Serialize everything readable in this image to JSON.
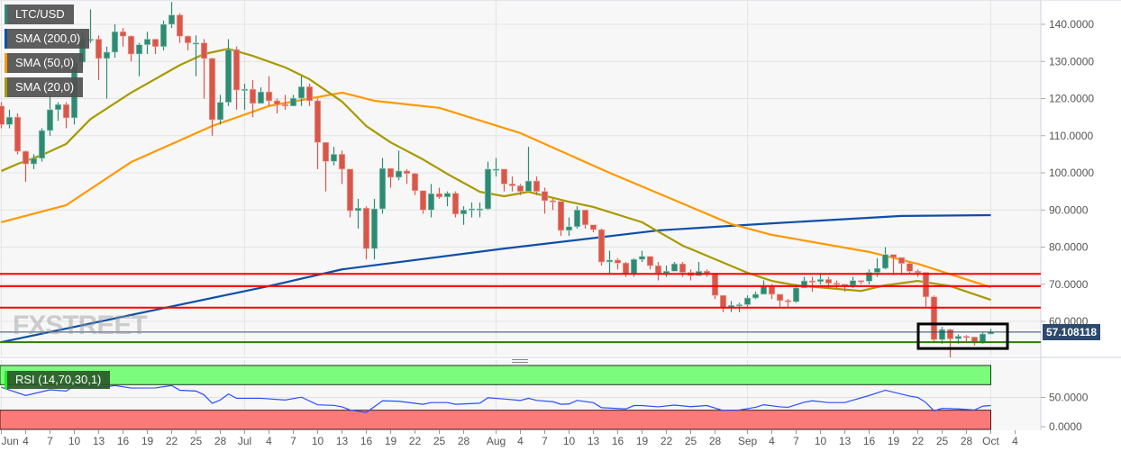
{
  "legend": {
    "symbol": {
      "label": "LTC/USD",
      "color": "#2e8b73"
    },
    "sma200": {
      "label": "SMA (200,0)",
      "color": "#0d4fa8"
    },
    "sma50": {
      "label": "SMA (50,0)",
      "color": "#ff9800"
    },
    "sma20": {
      "label": "SMA (20,0)",
      "color": "#a89a00"
    },
    "rsi": {
      "label": "RSI (14,70,30,1)",
      "color": "#22ee22"
    }
  },
  "watermark": "FXSTREET",
  "current_price": "57.108118",
  "colors": {
    "up": "#2e8b73",
    "down": "#d9574a",
    "resistance": "#ff0000",
    "support": "#2e7d00",
    "price_line": "#2c4a6e",
    "rsi_line": "#2a4dff",
    "overbought": "#7cfc7c",
    "oversold": "#fa7a7a"
  },
  "chart_data": [
    {
      "type": "candlestick",
      "title": "LTC/USD",
      "ylim": [
        50,
        146
      ],
      "y_ticks": [
        "140.0000",
        "130.0000",
        "120.0000",
        "110.0000",
        "100.0000",
        "90.0000",
        "80.0000",
        "70.0000",
        "60.0000"
      ],
      "x_ticks": [
        {
          "label": "Jun",
          "date": "Jun 1"
        },
        {
          "label": "4",
          "date": "Jun 4"
        },
        {
          "label": "7",
          "date": "Jun 7"
        },
        {
          "label": "10",
          "date": "Jun 10"
        },
        {
          "label": "13",
          "date": "Jun 13"
        },
        {
          "label": "16",
          "date": "Jun 16"
        },
        {
          "label": "19",
          "date": "Jun 19"
        },
        {
          "label": "22",
          "date": "Jun 22"
        },
        {
          "label": "25",
          "date": "Jun 25"
        },
        {
          "label": "28",
          "date": "Jun 28"
        },
        {
          "label": "Jul",
          "date": "Jul 1"
        },
        {
          "label": "4",
          "date": "Jul 4"
        },
        {
          "label": "7",
          "date": "Jul 7"
        },
        {
          "label": "10",
          "date": "Jul 10"
        },
        {
          "label": "13",
          "date": "Jul 13"
        },
        {
          "label": "16",
          "date": "Jul 16"
        },
        {
          "label": "19",
          "date": "Jul 19"
        },
        {
          "label": "22",
          "date": "Jul 22"
        },
        {
          "label": "25",
          "date": "Jul 25"
        },
        {
          "label": "28",
          "date": "Jul 28"
        },
        {
          "label": "Aug",
          "date": "Aug 1"
        },
        {
          "label": "4",
          "date": "Aug 4"
        },
        {
          "label": "7",
          "date": "Aug 7"
        },
        {
          "label": "10",
          "date": "Aug 10"
        },
        {
          "label": "13",
          "date": "Aug 13"
        },
        {
          "label": "16",
          "date": "Aug 16"
        },
        {
          "label": "19",
          "date": "Aug 19"
        },
        {
          "label": "22",
          "date": "Aug 22"
        },
        {
          "label": "25",
          "date": "Aug 25"
        },
        {
          "label": "28",
          "date": "Aug 28"
        },
        {
          "label": "Sep",
          "date": "Sep 1"
        },
        {
          "label": "4",
          "date": "Sep 4"
        },
        {
          "label": "7",
          "date": "Sep 7"
        },
        {
          "label": "10",
          "date": "Sep 10"
        },
        {
          "label": "13",
          "date": "Sep 13"
        },
        {
          "label": "16",
          "date": "Sep 16"
        },
        {
          "label": "19",
          "date": "Sep 19"
        },
        {
          "label": "22",
          "date": "Sep 22"
        },
        {
          "label": "25",
          "date": "Sep 25"
        },
        {
          "label": "28",
          "date": "Sep 28"
        },
        {
          "label": "Oct",
          "date": "Oct 1"
        },
        {
          "label": "4",
          "date": "Oct 4"
        }
      ],
      "first_open": 118,
      "close": [
        113,
        115,
        105.8,
        102.4,
        103.9,
        111.4,
        117,
        118.4,
        114.8,
        129.8,
        136,
        136,
        130.8,
        132.5,
        138,
        136.8,
        132,
        134.5,
        136,
        134,
        140,
        142.5,
        136.8,
        135,
        135,
        130.8,
        114.3,
        119,
        133.2,
        122.3,
        122.5,
        118.7,
        121.8,
        119.4,
        118.4,
        118,
        120.1,
        123.2,
        119.4,
        108.2,
        103.1,
        105,
        101,
        89.8,
        90.5,
        79.6,
        90.3,
        101.2,
        98.8,
        100.5,
        99.8,
        95.2,
        90,
        94.4,
        93.5,
        94.5,
        88.9,
        90,
        90.3,
        90.3,
        101,
        101,
        97,
        96.5,
        95,
        97.8,
        95,
        92.5,
        92.3,
        84.5,
        85.5,
        90,
        86,
        84.7,
        76,
        76.5,
        75.7,
        72.8,
        76.7,
        77.5,
        75,
        73,
        73.5,
        75.5,
        73.2,
        72.3,
        73.5,
        73,
        67,
        63.8,
        64.3,
        64.5,
        66.3,
        67.3,
        69.5,
        67.3,
        65.6,
        65.3,
        69,
        70.9,
        70.7,
        71.3,
        70.3,
        70,
        69.7,
        71,
        70.8,
        73.2,
        74.3,
        78,
        77.2,
        75.6,
        73.5,
        73.2,
        66.6,
        55.1,
        57.8,
        55.3,
        56,
        55.8,
        54.5,
        56.6,
        57.1
      ],
      "high": [
        119,
        117,
        116,
        106,
        105,
        112,
        121,
        119,
        119,
        131,
        138,
        144,
        137,
        134,
        140,
        139,
        137,
        135,
        138,
        136,
        141,
        146,
        143,
        137,
        137,
        136,
        131,
        121,
        136,
        134,
        124,
        125,
        123,
        126,
        120,
        121,
        121,
        126,
        124,
        120,
        108,
        107,
        106,
        101,
        93,
        91,
        93,
        104,
        101,
        106,
        101,
        100,
        95,
        97,
        96,
        95,
        95,
        91,
        92,
        92,
        103,
        104,
        101,
        99,
        97,
        107,
        99,
        96,
        93,
        92,
        88,
        91,
        90,
        86,
        85,
        79,
        77,
        76,
        77,
        79,
        77,
        76,
        75,
        76,
        76,
        74,
        76,
        74,
        73,
        67,
        65.5,
        65,
        67,
        68,
        71,
        70,
        67,
        66,
        70,
        72,
        72,
        73,
        72,
        71,
        70,
        72,
        71,
        74,
        77,
        80,
        78,
        77,
        76,
        74,
        73,
        67,
        58.5,
        58,
        56.5,
        56.3,
        55.5,
        57,
        58
      ],
      "low": [
        112,
        112,
        105,
        97.6,
        101,
        103,
        110,
        114,
        112,
        113,
        128,
        135,
        125,
        120,
        131,
        134,
        130,
        126,
        132,
        132,
        133,
        139,
        135,
        133,
        126,
        120,
        110,
        113,
        118,
        117,
        117,
        115,
        119,
        118,
        116,
        117,
        118,
        118,
        118,
        101,
        95,
        102,
        97,
        88,
        85,
        76.7,
        76.7,
        89,
        96,
        98,
        97,
        94,
        89,
        88,
        93,
        91,
        88,
        86,
        88,
        88,
        90,
        99,
        95,
        95,
        94,
        95,
        94,
        89,
        90,
        83,
        83,
        85,
        85,
        84,
        75,
        73,
        74,
        72,
        72,
        76,
        74,
        71,
        72,
        74,
        72,
        71,
        73,
        72,
        66,
        62.5,
        62.5,
        62.5,
        64,
        66,
        68,
        66,
        64,
        64,
        65,
        69,
        68,
        70,
        69,
        69,
        68,
        69,
        70,
        70,
        72,
        74,
        72.5,
        72.5,
        73,
        72,
        64,
        54.5,
        54,
        50.3,
        54,
        54.5,
        53.5,
        54,
        56.6
      ],
      "sma200": [
        [
          "Jun 1",
          54.4
        ],
        [
          "Jul 4",
          69.5
        ],
        [
          "Jul 13",
          74
        ],
        [
          "Aug 2",
          79.6
        ],
        [
          "Aug 21",
          84.5
        ],
        [
          "Sep 4",
          86.4
        ],
        [
          "Sep 20",
          88.4
        ],
        [
          "Oct 1",
          88.6
        ]
      ],
      "sma50": [
        [
          "Jun 1",
          86.7
        ],
        [
          "Jun 9",
          91.3
        ],
        [
          "Jun 17",
          102.9
        ],
        [
          "Jun 27",
          112.6
        ],
        [
          "Jul 4",
          118
        ],
        [
          "Jul 13",
          121.6
        ],
        [
          "Jul 17",
          119.4
        ],
        [
          "Jul 25",
          117.5
        ],
        [
          "Aug 4",
          110.7
        ],
        [
          "Aug 15",
          100
        ],
        [
          "Aug 30",
          86.2
        ],
        [
          "Sep 4",
          83.3
        ],
        [
          "Sep 16",
          78.7
        ],
        [
          "Sep 22",
          75.5
        ],
        [
          "Oct 1",
          69.2
        ]
      ],
      "sma20": [
        [
          "Jun 1",
          100.5
        ],
        [
          "Jun 3",
          102.4
        ],
        [
          "Jun 6",
          104.8
        ],
        [
          "Jun 9",
          107.8
        ],
        [
          "Jun 12",
          114.5
        ],
        [
          "Jun 17",
          121.6
        ],
        [
          "Jun 23",
          129
        ],
        [
          "Jun 26",
          132
        ],
        [
          "Jun 29",
          133.4
        ],
        [
          "Jul 2",
          131.5
        ],
        [
          "Jul 6",
          128.4
        ],
        [
          "Jul 9",
          125.2
        ],
        [
          "Jul 13",
          119.2
        ],
        [
          "Jul 16",
          112.6
        ],
        [
          "Jul 19",
          108.2
        ],
        [
          "Jul 23",
          103.6
        ],
        [
          "Jul 26",
          99.7
        ],
        [
          "Jul 30",
          94.9
        ],
        [
          "Aug 2",
          93.7
        ],
        [
          "Aug 5",
          94.9
        ],
        [
          "Aug 10",
          92.2
        ],
        [
          "Aug 13",
          90.8
        ],
        [
          "Aug 19",
          86.7
        ],
        [
          "Aug 24",
          80.4
        ],
        [
          "Sep 1",
          73.1
        ],
        [
          "Sep 4",
          70.9
        ],
        [
          "Sep 7",
          69.7
        ],
        [
          "Sep 15",
          68.2
        ],
        [
          "Sep 18",
          69.7
        ],
        [
          "Sep 22",
          70.9
        ],
        [
          "Sep 26",
          69.5
        ],
        [
          "Oct 1",
          65.8
        ]
      ],
      "resistance_levels": [
        72.8,
        69.5,
        63.7
      ],
      "support_level": 54.4,
      "current_price_value": 57.108118,
      "highlight_box": {
        "from": "Sep 22",
        "to": "Oct 3",
        "low": 52.7,
        "high": 59.3
      },
      "grid": true
    },
    {
      "type": "line",
      "title": "RSI (14,70,30,1)",
      "ylim": [
        0,
        100
      ],
      "y_ticks": [
        "50.0000",
        "0.0000"
      ],
      "overbought": 70,
      "oversold": 30,
      "series": [
        [
          "Jun 1",
          66
        ],
        [
          "Jun 4",
          53
        ],
        [
          "Jun 7",
          62
        ],
        [
          "Jun 9",
          60
        ],
        [
          "Jun 10",
          68.7
        ],
        [
          "Jun 13",
          65
        ],
        [
          "Jun 15",
          68.7
        ],
        [
          "Jun 17",
          64.7
        ],
        [
          "Jun 20",
          64.9
        ],
        [
          "Jun 22",
          68.7
        ],
        [
          "Jun 23",
          61.3
        ],
        [
          "Jun 25",
          60
        ],
        [
          "Jun 26",
          54
        ],
        [
          "Jun 27",
          40.8
        ],
        [
          "Jun 28",
          46
        ],
        [
          "Jun 29",
          55.3
        ],
        [
          "Jun 30",
          48.7
        ],
        [
          "Jul 3",
          48.7
        ],
        [
          "Jul 6",
          46
        ],
        [
          "Jul 8",
          50.4
        ],
        [
          "Jul 10",
          38.5
        ],
        [
          "Jul 12",
          37.6
        ],
        [
          "Jul 13",
          35.3
        ],
        [
          "Jul 14",
          30.4
        ],
        [
          "Jul 16",
          26.5
        ],
        [
          "Jul 18",
          44.7
        ],
        [
          "Jul 20",
          44
        ],
        [
          "Jul 23",
          39.3
        ],
        [
          "Jul 24",
          42
        ],
        [
          "Jul 26",
          42
        ],
        [
          "Jul 27",
          39.3
        ],
        [
          "Jul 30",
          41
        ],
        [
          "Jul 31",
          49.5
        ],
        [
          "Aug 2",
          47.6
        ],
        [
          "Aug 4",
          45.3
        ],
        [
          "Aug 5",
          48.7
        ],
        [
          "Aug 6",
          45.3
        ],
        [
          "Aug 8",
          43.3
        ],
        [
          "Aug 9",
          39.3
        ],
        [
          "Aug 10",
          39.8
        ],
        [
          "Aug 11",
          45.3
        ],
        [
          "Aug 13",
          41.8
        ],
        [
          "Aug 14",
          34
        ],
        [
          "Aug 17",
          32
        ],
        [
          "Aug 18",
          37.3
        ],
        [
          "Aug 19",
          37.3
        ],
        [
          "Aug 21",
          35.3
        ],
        [
          "Aug 23",
          38
        ],
        [
          "Aug 25",
          35.6
        ],
        [
          "Aug 27",
          37.3
        ],
        [
          "Aug 29",
          29.5
        ],
        [
          "Aug 31",
          30.4
        ],
        [
          "Sep 2",
          34.6
        ],
        [
          "Sep 3",
          38.6
        ],
        [
          "Sep 5",
          35.3
        ],
        [
          "Sep 6",
          34.6
        ],
        [
          "Sep 8",
          42.5
        ],
        [
          "Sep 9",
          44.7
        ],
        [
          "Sep 11",
          42
        ],
        [
          "Sep 13",
          42
        ],
        [
          "Sep 14",
          45.7
        ],
        [
          "Sep 16",
          53
        ],
        [
          "Sep 18",
          61.3
        ],
        [
          "Sep 21",
          52
        ],
        [
          "Sep 22",
          50
        ],
        [
          "Sep 23",
          42
        ],
        [
          "Sep 24",
          29
        ],
        [
          "Sep 25",
          33
        ],
        [
          "Sep 27",
          32
        ],
        [
          "Sep 29",
          30.4
        ],
        [
          "Sep 30",
          36.3
        ],
        [
          "Oct 1",
          37.3
        ]
      ]
    }
  ]
}
